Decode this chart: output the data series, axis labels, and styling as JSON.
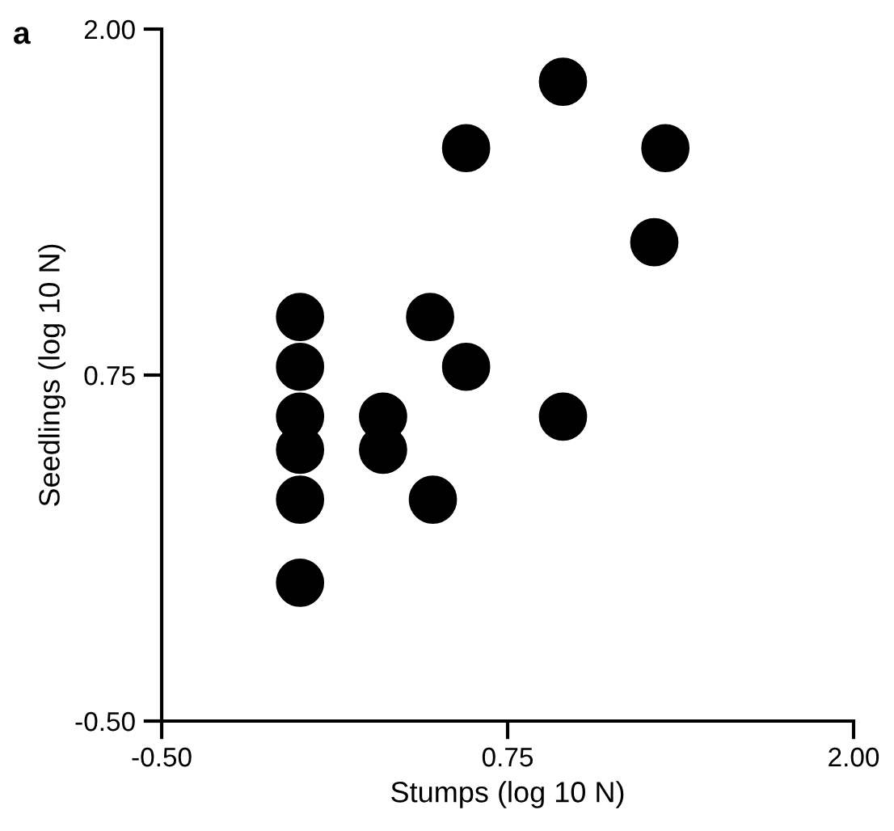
{
  "chart_data": {
    "type": "scatter",
    "xlabel": "Stumps (log 10 N)",
    "ylabel": "Seedlings (log 10 N)",
    "annotations": [
      "a"
    ],
    "x": [
      0.0,
      0.0,
      0.0,
      0.0,
      0.0,
      0.0,
      0.3,
      0.3,
      0.47,
      0.48,
      0.6,
      0.6,
      0.95,
      0.95,
      1.32,
      1.28
    ],
    "values": [
      0.96,
      0.78,
      0.6,
      0.48,
      0.3,
      0.0,
      0.6,
      0.48,
      0.96,
      0.3,
      0.78,
      1.57,
      1.81,
      0.6,
      1.57,
      1.23
    ],
    "color": "#000000",
    "marker": "circle",
    "xlim": [
      -0.5,
      2.0
    ],
    "xticks": [
      {
        "value": -0.5,
        "label": "-0.50"
      },
      {
        "value": 0.75,
        "label": "0.75"
      },
      {
        "value": 2.0,
        "label": "2.00"
      }
    ],
    "ylim": [
      -0.5,
      2.0
    ],
    "yticks": [
      {
        "value": -0.5,
        "label": "-0.50"
      },
      {
        "value": 0.75,
        "label": "0.75"
      },
      {
        "value": 2.0,
        "label": "2.00"
      }
    ],
    "grid": false
  }
}
